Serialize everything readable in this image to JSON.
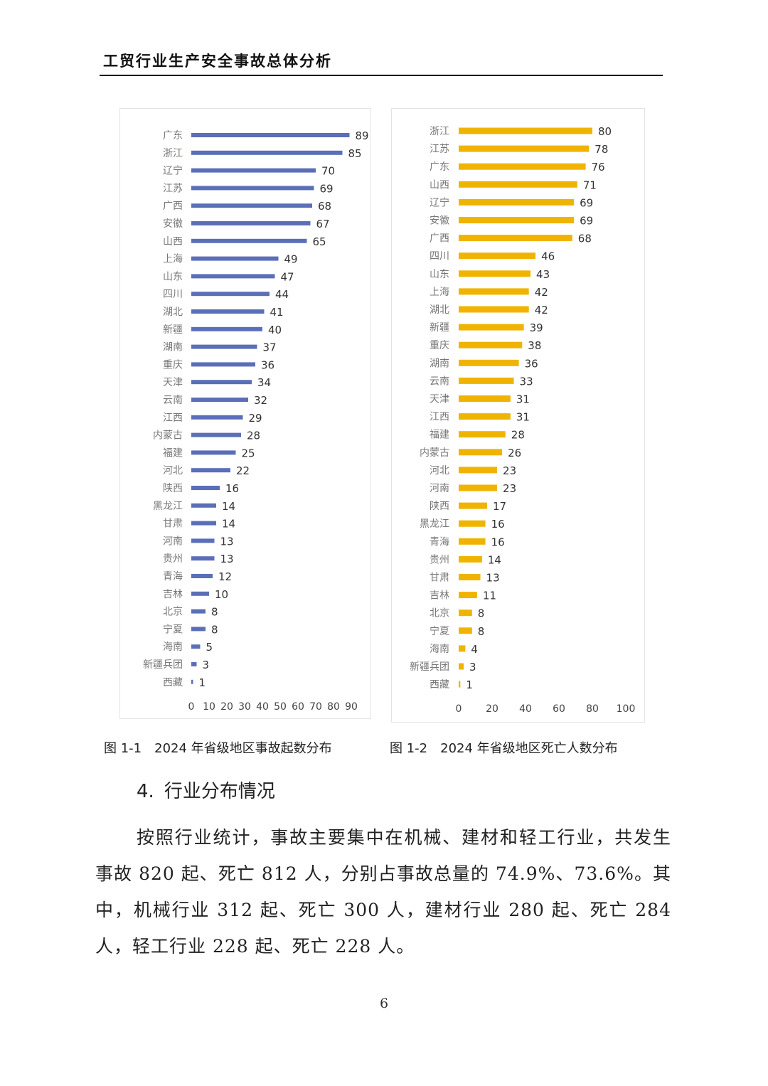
{
  "header": {
    "title": "工贸行业生产安全事故总体分析"
  },
  "chart_data": [
    {
      "type": "bar",
      "orientation": "horizontal",
      "title": "2024年省级地区事故起数分布",
      "color": "#5b6fb8",
      "categories": [
        "广东",
        "浙江",
        "辽宁",
        "江苏",
        "广西",
        "安徽",
        "山西",
        "上海",
        "山东",
        "四川",
        "湖北",
        "新疆",
        "湖南",
        "重庆",
        "天津",
        "云南",
        "江西",
        "内蒙古",
        "福建",
        "河北",
        "陕西",
        "黑龙江",
        "甘肃",
        "河南",
        "贵州",
        "青海",
        "吉林",
        "北京",
        "宁夏",
        "海南",
        "新疆兵团",
        "西藏"
      ],
      "values": [
        89,
        85,
        70,
        69,
        68,
        67,
        65,
        49,
        47,
        44,
        41,
        40,
        37,
        36,
        34,
        32,
        29,
        28,
        25,
        22,
        16,
        14,
        14,
        13,
        13,
        12,
        10,
        8,
        8,
        5,
        3,
        1
      ],
      "xlim": [
        0,
        90
      ],
      "xticks": [
        0,
        10,
        20,
        30,
        40,
        50,
        60,
        70,
        80,
        90
      ]
    },
    {
      "type": "bar",
      "orientation": "horizontal",
      "title": "2024年省级地区死亡人数分布",
      "color": "#f0b400",
      "categories": [
        "浙江",
        "江苏",
        "广东",
        "山西",
        "辽宁",
        "安徽",
        "广西",
        "四川",
        "山东",
        "上海",
        "湖北",
        "新疆",
        "重庆",
        "湖南",
        "云南",
        "天津",
        "江西",
        "福建",
        "内蒙古",
        "河北",
        "河南",
        "陕西",
        "黑龙江",
        "青海",
        "贵州",
        "甘肃",
        "吉林",
        "北京",
        "宁夏",
        "海南",
        "新疆兵团",
        "西藏"
      ],
      "values": [
        80,
        78,
        76,
        71,
        69,
        69,
        68,
        46,
        43,
        42,
        42,
        39,
        38,
        36,
        33,
        31,
        31,
        28,
        26,
        23,
        23,
        17,
        16,
        16,
        14,
        13,
        11,
        8,
        8,
        4,
        3,
        1
      ],
      "xlim": [
        0,
        100
      ],
      "xticks": [
        0,
        20,
        40,
        60,
        80,
        100
      ]
    }
  ],
  "captions": {
    "fig1": {
      "number": "图 1-1",
      "text": "2024 年省级地区事故起数分布"
    },
    "fig2": {
      "number": "图 1-2",
      "text": "2024 年省级地区死亡人数分布"
    }
  },
  "section": {
    "number": "4.",
    "title": "行业分布情况"
  },
  "paragraph": "按照行业统计，事故主要集中在机械、建材和轻工行业，共发生事故 820 起、死亡 812 人，分别占事故总量的 74.9%、73.6%。其中，机械行业 312 起、死亡 300 人，建材行业 280 起、死亡 284 人，轻工行业 228 起、死亡 228 人。",
  "page_number": "6"
}
